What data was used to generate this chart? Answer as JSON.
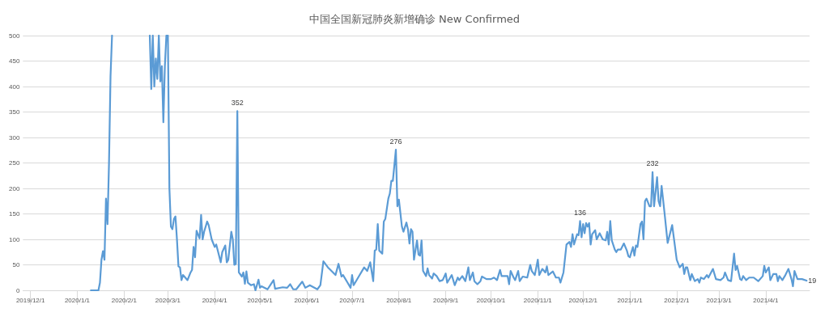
{
  "chart_data": {
    "type": "line",
    "title": "中国全国新冠肺炎新增确诊 New Confirmed",
    "x": [
      "2020-01-10",
      "2020-01-15",
      "2020-01-16",
      "2020-01-17",
      "2020-01-18",
      "2020-01-19",
      "2020-01-20",
      "2020-01-21",
      "2020-01-22",
      "2020-01-23",
      "2020-01-24",
      "2020-02-01",
      "2020-02-18",
      "2020-02-19",
      "2020-02-20",
      "2020-02-21",
      "2020-02-22",
      "2020-02-23",
      "2020-02-24",
      "2020-02-25",
      "2020-02-26",
      "2020-02-27",
      "2020-02-28",
      "2020-02-29",
      "2020-03-01",
      "2020-03-02",
      "2020-03-03",
      "2020-03-04",
      "2020-03-05",
      "2020-03-06",
      "2020-03-07",
      "2020-03-08",
      "2020-03-09",
      "2020-03-10",
      "2020-03-11",
      "2020-03-14",
      "2020-03-16",
      "2020-03-17",
      "2020-03-18",
      "2020-03-19",
      "2020-03-20",
      "2020-03-22",
      "2020-03-23",
      "2020-03-24",
      "2020-03-25",
      "2020-03-27",
      "2020-03-28",
      "2020-03-30",
      "2020-04-01",
      "2020-04-02",
      "2020-04-05",
      "2020-04-06",
      "2020-04-08",
      "2020-04-09",
      "2020-04-10",
      "2020-04-12",
      "2020-04-13",
      "2020-04-14",
      "2020-04-15",
      "2020-04-16",
      "2020-04-17",
      "2020-04-19",
      "2020-04-20",
      "2020-04-21",
      "2020-04-22",
      "2020-04-23",
      "2020-04-25",
      "2020-04-27",
      "2020-04-28",
      "2020-04-30",
      "2020-05-01",
      "2020-05-02",
      "2020-05-06",
      "2020-05-10",
      "2020-05-11",
      "2020-05-16",
      "2020-05-19",
      "2020-05-21",
      "2020-05-23",
      "2020-05-25",
      "2020-05-29",
      "2020-05-31",
      "2020-06-03",
      "2020-06-08",
      "2020-06-10",
      "2020-06-12",
      "2020-06-15",
      "2020-06-16",
      "2020-06-20",
      "2020-06-22",
      "2020-06-24",
      "2020-06-25",
      "2020-06-28",
      "2020-06-30",
      "2020-07-01",
      "2020-07-02",
      "2020-07-05",
      "2020-07-09",
      "2020-07-11",
      "2020-07-13",
      "2020-07-15",
      "2020-07-16",
      "2020-07-17",
      "2020-07-18",
      "2020-07-19",
      "2020-07-21",
      "2020-07-22",
      "2020-07-23",
      "2020-07-25",
      "2020-07-26",
      "2020-07-27",
      "2020-07-28",
      "2020-07-30",
      "2020-07-31",
      "2020-08-01",
      "2020-08-03",
      "2020-08-04",
      "2020-08-06",
      "2020-08-07",
      "2020-08-08",
      "2020-08-09",
      "2020-08-10",
      "2020-08-11",
      "2020-08-13",
      "2020-08-14",
      "2020-08-15",
      "2020-08-16",
      "2020-08-17",
      "2020-08-19",
      "2020-08-20",
      "2020-08-21",
      "2020-08-23",
      "2020-08-24",
      "2020-08-26",
      "2020-08-28",
      "2020-08-30",
      "2020-09-01",
      "2020-09-02",
      "2020-09-04",
      "2020-09-05",
      "2020-09-07",
      "2020-09-09",
      "2020-09-10",
      "2020-09-12",
      "2020-09-14",
      "2020-09-16",
      "2020-09-17",
      "2020-09-19",
      "2020-09-20",
      "2020-09-22",
      "2020-09-24",
      "2020-09-25",
      "2020-09-28",
      "2020-10-01",
      "2020-10-03",
      "2020-10-05",
      "2020-10-07",
      "2020-10-08",
      "2020-10-12",
      "2020-10-13",
      "2020-10-14",
      "2020-10-16",
      "2020-10-17",
      "2020-10-19",
      "2020-10-20",
      "2020-10-22",
      "2020-10-25",
      "2020-10-27",
      "2020-10-28",
      "2020-10-30",
      "2020-11-01",
      "2020-11-02",
      "2020-11-04",
      "2020-11-06",
      "2020-11-07",
      "2020-11-08",
      "2020-11-11",
      "2020-11-13",
      "2020-11-15",
      "2020-11-16",
      "2020-11-18",
      "2020-11-20",
      "2020-11-22",
      "2020-11-23",
      "2020-11-24",
      "2020-11-25",
      "2020-11-27",
      "2020-11-28",
      "2020-11-29",
      "2020-11-30",
      "2020-12-01",
      "2020-12-02",
      "2020-12-03",
      "2020-12-04",
      "2020-12-05",
      "2020-12-06",
      "2020-12-07",
      "2020-12-09",
      "2020-12-10",
      "2020-12-12",
      "2020-12-14",
      "2020-12-16",
      "2020-12-17",
      "2020-12-18",
      "2020-12-19",
      "2020-12-20",
      "2020-12-22",
      "2020-12-23",
      "2020-12-24",
      "2020-12-26",
      "2020-12-28",
      "2020-12-30",
      "2020-12-31",
      "2021-01-01",
      "2021-01-03",
      "2021-01-04",
      "2021-01-05",
      "2021-01-06",
      "2021-01-08",
      "2021-01-09",
      "2021-01-10",
      "2021-01-11",
      "2021-01-12",
      "2021-01-14",
      "2021-01-15",
      "2021-01-16",
      "2021-01-17",
      "2021-01-19",
      "2021-01-20",
      "2021-01-21",
      "2021-01-22",
      "2021-01-24",
      "2021-01-26",
      "2021-01-29",
      "2021-02-01",
      "2021-02-03",
      "2021-02-05",
      "2021-02-06",
      "2021-02-07",
      "2021-02-08",
      "2021-02-10",
      "2021-02-11",
      "2021-02-13",
      "2021-02-15",
      "2021-02-16",
      "2021-02-17",
      "2021-02-19",
      "2021-02-21",
      "2021-02-22",
      "2021-02-25",
      "2021-02-27",
      "2021-03-02",
      "2021-03-04",
      "2021-03-05",
      "2021-03-07",
      "2021-03-09",
      "2021-03-11",
      "2021-03-12",
      "2021-03-13",
      "2021-03-15",
      "2021-03-16",
      "2021-03-17",
      "2021-03-19",
      "2021-03-21",
      "2021-03-24",
      "2021-03-27",
      "2021-03-30",
      "2021-03-31",
      "2021-04-01",
      "2021-04-03",
      "2021-04-04",
      "2021-04-06",
      "2021-04-08",
      "2021-04-09",
      "2021-04-10",
      "2021-04-12",
      "2021-04-14",
      "2021-04-16",
      "2021-04-18",
      "2021-04-19",
      "2021-04-20",
      "2021-04-22",
      "2021-04-25",
      "2021-04-28"
    ],
    "series": [
      {
        "color": "#5b9bd5",
        "values": [
          0,
          0,
          15,
          60,
          77,
          60,
          180,
          130,
          250,
          420,
          500,
          null,
          500,
          395,
          500,
          400,
          455,
          415,
          500,
          410,
          440,
          330,
          440,
          500,
          500,
          200,
          125,
          120,
          140,
          145,
          100,
          47,
          45,
          20,
          30,
          20,
          35,
          40,
          85,
          65,
          117,
          102,
          148,
          100,
          115,
          135,
          128,
          100,
          85,
          90,
          55,
          75,
          88,
          55,
          60,
          115,
          100,
          50,
          52,
          352,
          35,
          27,
          35,
          13,
          37,
          15,
          10,
          12,
          0,
          21,
          5,
          8,
          2,
          20,
          3,
          6,
          5,
          12,
          2,
          2,
          17,
          5,
          10,
          2,
          10,
          57,
          45,
          42,
          30,
          52,
          27,
          30,
          15,
          5,
          30,
          10,
          25,
          45,
          38,
          55,
          18,
          78,
          80,
          130,
          78,
          72,
          135,
          140,
          180,
          190,
          215,
          215,
          276,
          165,
          178,
          125,
          115,
          133,
          120,
          92,
          120,
          115,
          60,
          98,
          70,
          68,
          98,
          38,
          28,
          43,
          30,
          23,
          33,
          28,
          18,
          20,
          33,
          15,
          25,
          30,
          10,
          25,
          20,
          28,
          18,
          45,
          20,
          35,
          18,
          12,
          18,
          27,
          22,
          22,
          25,
          20,
          40,
          28,
          28,
          12,
          38,
          25,
          20,
          38,
          18,
          27,
          25,
          50,
          38,
          30,
          60,
          30,
          42,
          35,
          47,
          30,
          37,
          25,
          25,
          15,
          35,
          90,
          95,
          85,
          110,
          90,
          110,
          108,
          136,
          104,
          130,
          112,
          132,
          125,
          132,
          90,
          110,
          118,
          100,
          112,
          100,
          98,
          115,
          90,
          136,
          98,
          80,
          75,
          80,
          80,
          92,
          78,
          67,
          65,
          85,
          68,
          88,
          85,
          130,
          135,
          100,
          175,
          180,
          165,
          165,
          232,
          165,
          222,
          175,
          165,
          205,
          150,
          93,
          128,
          60,
          45,
          52,
          32,
          45,
          45,
          20,
          32,
          18,
          22,
          15,
          25,
          22,
          30,
          25,
          42,
          22,
          20,
          25,
          35,
          20,
          18,
          72,
          40,
          48,
          22,
          20,
          28,
          20,
          25,
          25,
          18,
          28,
          48,
          35,
          45,
          20,
          32,
          32,
          18,
          28,
          20,
          30,
          42,
          22,
          8,
          38,
          22,
          22,
          19
        ]
      }
    ],
    "xlim": [
      "2019-11-26",
      "2021-04-30"
    ],
    "xticks": [
      {
        "value": "2019-12-01",
        "label": "2019/12/1"
      },
      {
        "value": "2020-01-01",
        "label": "2020/1/1"
      },
      {
        "value": "2020-02-01",
        "label": "2020/2/1"
      },
      {
        "value": "2020-03-01",
        "label": "2020/3/1"
      },
      {
        "value": "2020-04-01",
        "label": "2020/4/1"
      },
      {
        "value": "2020-05-01",
        "label": "2020/5/1"
      },
      {
        "value": "2020-06-01",
        "label": "2020/6/1"
      },
      {
        "value": "2020-07-01",
        "label": "2020/7/1"
      },
      {
        "value": "2020-08-01",
        "label": "2020/8/1"
      },
      {
        "value": "2020-09-01",
        "label": "2020/9/1"
      },
      {
        "value": "2020-10-01",
        "label": "2020/10/1"
      },
      {
        "value": "2020-11-01",
        "label": "2020/11/1"
      },
      {
        "value": "2020-12-01",
        "label": "2020/12/1"
      },
      {
        "value": "2021-01-01",
        "label": "2021/1/1"
      },
      {
        "value": "2021-02-01",
        "label": "2021/2/1"
      },
      {
        "value": "2021-03-01",
        "label": "2021/3/1"
      },
      {
        "value": "2021-04-01",
        "label": "2021/4/1"
      }
    ],
    "ylim": [
      0,
      500
    ],
    "yticks": [
      0,
      50,
      100,
      150,
      200,
      250,
      300,
      350,
      400,
      450,
      500
    ],
    "grid": "y",
    "line_style": "solid",
    "annotations": [
      {
        "text": "352",
        "x": "2020-04-16",
        "y": 352
      },
      {
        "text": "276",
        "x": "2020-07-30",
        "y": 276
      },
      {
        "text": "136",
        "x": "2020-11-29",
        "y": 136
      },
      {
        "text": "232",
        "x": "2021-01-16",
        "y": 232
      },
      {
        "text": "19",
        "x": "2021-04-28",
        "y": 19
      }
    ]
  }
}
